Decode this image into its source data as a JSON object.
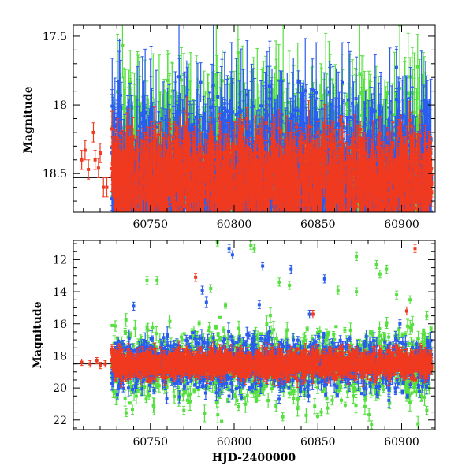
{
  "chart_data": [
    {
      "type": "scatter",
      "panel": "top",
      "ylabel": "Magnitude",
      "xlabel": "",
      "xlim": [
        60704,
        60920
      ],
      "ylim": [
        18.78,
        17.42
      ],
      "y_inverted": true,
      "x_ticks": [
        60750,
        60800,
        60850,
        60900
      ],
      "x_tick_labels": [
        "60750",
        "60800",
        "60850",
        "60900"
      ],
      "y_ticks": [
        17.5,
        18,
        18.5
      ],
      "y_tick_labels": [
        "17.5",
        "18",
        "18.5"
      ],
      "reference_line": 18.53,
      "series": [
        {
          "color": "#2b5cf0",
          "x_range": [
            60727,
            60918
          ],
          "median": 18.5,
          "scatter": 0.25
        },
        {
          "color": "#55e040",
          "x_range": [
            60727,
            60918
          ],
          "median": 18.5,
          "scatter": 0.28
        },
        {
          "color": "#f03a20",
          "x_range": [
            60727,
            60918
          ],
          "median": 18.55,
          "scatter": 0.15
        }
      ],
      "early_points": [
        {
          "x": 60709,
          "y": 18.4
        },
        {
          "x": 60711,
          "y": 18.33
        },
        {
          "x": 60713,
          "y": 18.47
        },
        {
          "x": 60716,
          "y": 18.2
        },
        {
          "x": 60717,
          "y": 18.4
        },
        {
          "x": 60720,
          "y": 18.35
        },
        {
          "x": 60722,
          "y": 18.6
        },
        {
          "x": 60719,
          "y": 18.46
        },
        {
          "x": 60724,
          "y": 18.6
        }
      ],
      "grid": false,
      "legend": "none"
    },
    {
      "type": "scatter",
      "panel": "bottom",
      "ylabel": "Magnitude",
      "xlabel": "HJD-2400000",
      "xlim": [
        60704,
        60920
      ],
      "ylim": [
        22.6,
        10.8
      ],
      "y_inverted": true,
      "x_ticks": [
        60750,
        60800,
        60850,
        60900
      ],
      "x_tick_labels": [
        "60750",
        "60800",
        "60850",
        "60900"
      ],
      "y_ticks": [
        12,
        14,
        16,
        18,
        20,
        22
      ],
      "y_tick_labels": [
        "12",
        "14",
        "16",
        "18",
        "20",
        "22"
      ],
      "reference_line": 18.5,
      "series": [
        {
          "color": "#2b5cf0",
          "x_range": [
            60727,
            60918
          ],
          "median": 18.5,
          "scatter": 0.8
        },
        {
          "color": "#55e040",
          "x_range": [
            60727,
            60918
          ],
          "median": 18.6,
          "scatter": 1.1
        },
        {
          "color": "#f03a20",
          "x_range": [
            60727,
            60918
          ],
          "median": 18.5,
          "scatter": 0.35
        }
      ],
      "outliers": [
        {
          "x": 60777,
          "y": 13.1,
          "color": "#f03a20"
        },
        {
          "x": 60908,
          "y": 11.3,
          "color": "#f03a20"
        },
        {
          "x": 60903,
          "y": 15.2,
          "color": "#f03a20"
        },
        {
          "x": 60847,
          "y": 15.4,
          "color": "#f03a20"
        },
        {
          "x": 60797,
          "y": 11.3,
          "color": "#2b5cf0"
        },
        {
          "x": 60799,
          "y": 11.7,
          "color": "#2b5cf0"
        },
        {
          "x": 60817,
          "y": 12.4,
          "color": "#2b5cf0"
        },
        {
          "x": 60834,
          "y": 12.6,
          "color": "#2b5cf0"
        },
        {
          "x": 60854,
          "y": 13.2,
          "color": "#2b5cf0"
        },
        {
          "x": 60781,
          "y": 13.9,
          "color": "#2b5cf0"
        },
        {
          "x": 60740,
          "y": 14.9,
          "color": "#2b5cf0"
        },
        {
          "x": 60815,
          "y": 14.8,
          "color": "#2b5cf0"
        },
        {
          "x": 60845,
          "y": 15.4,
          "color": "#2b5cf0"
        },
        {
          "x": 60899,
          "y": 16.0,
          "color": "#2b5cf0"
        },
        {
          "x": 60790,
          "y": 10.9,
          "color": "#55e040"
        },
        {
          "x": 60810,
          "y": 11.1,
          "color": "#55e040"
        },
        {
          "x": 60812,
          "y": 11.3,
          "color": "#55e040"
        },
        {
          "x": 60873,
          "y": 11.8,
          "color": "#55e040"
        },
        {
          "x": 60885,
          "y": 12.3,
          "color": "#55e040"
        },
        {
          "x": 60887,
          "y": 12.9,
          "color": "#55e040"
        },
        {
          "x": 60891,
          "y": 12.6,
          "color": "#55e040"
        },
        {
          "x": 60748,
          "y": 13.3,
          "color": "#55e040"
        },
        {
          "x": 60754,
          "y": 13.3,
          "color": "#55e040"
        },
        {
          "x": 60786,
          "y": 13.8,
          "color": "#55e040"
        },
        {
          "x": 60827,
          "y": 13.4,
          "color": "#55e040"
        },
        {
          "x": 60833,
          "y": 13.6,
          "color": "#55e040"
        },
        {
          "x": 60862,
          "y": 13.9,
          "color": "#55e040"
        },
        {
          "x": 60873,
          "y": 14.0,
          "color": "#55e040"
        },
        {
          "x": 60897,
          "y": 14.2,
          "color": "#55e040"
        },
        {
          "x": 60905,
          "y": 14.5,
          "color": "#55e040"
        },
        {
          "x": 60915,
          "y": 15.5,
          "color": "#55e040"
        },
        {
          "x": 60770,
          "y": 21.4,
          "color": "#55e040"
        },
        {
          "x": 60829,
          "y": 21.8,
          "color": "#55e040"
        },
        {
          "x": 60852,
          "y": 21.5,
          "color": "#55e040"
        },
        {
          "x": 60882,
          "y": 22.3,
          "color": "#55e040"
        },
        {
          "x": 60915,
          "y": 21.4,
          "color": "#55e040"
        }
      ],
      "early_points": [
        {
          "x": 60709,
          "y": 18.4
        },
        {
          "x": 60714,
          "y": 18.5
        },
        {
          "x": 60718,
          "y": 18.3
        },
        {
          "x": 60720,
          "y": 18.6
        },
        {
          "x": 60723,
          "y": 18.5
        }
      ],
      "grid": false,
      "legend": "none"
    }
  ]
}
